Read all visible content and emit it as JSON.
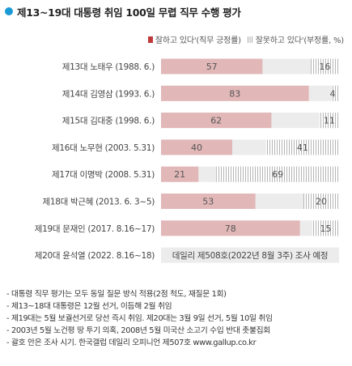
{
  "title": "제13~19대 대통령 취임 100일 무렵 직무 수행 평가",
  "legend": {
    "positive": "잘하고 있다'(직무 긍정률)",
    "negative": "잘못하고 있다'(부정률, %)"
  },
  "colors": {
    "positive_bar": "#e2b7b8",
    "negative_stripe": "#b5b5b5",
    "track": "#ececec",
    "title_dot": "#1a9ad6"
  },
  "chart_data": {
    "type": "bar",
    "orientation": "horizontal-stacked",
    "categories": [
      "제13대 노태우 (1988. 6.)",
      "제14대 김영삼 (1993. 6.)",
      "제15대 김대중 (1998. 6.)",
      "제16대 노무현 (2003. 5.31)",
      "제17대 이명박 (2008. 5.31)",
      "제18대 박근혜 (2013. 6. 3~5)",
      "제19대 문재인 (2017. 8.16~17)"
    ],
    "series": [
      {
        "name": "잘하고 있다'(직무 긍정률)",
        "values": [
          57,
          83,
          62,
          40,
          21,
          53,
          78
        ]
      },
      {
        "name": "잘못하고 있다'(부정률, %)",
        "values": [
          16,
          4,
          11,
          41,
          69,
          20,
          15
        ]
      }
    ],
    "xlim": [
      0,
      100
    ],
    "pending_row": {
      "label": "제20대 윤석열 (2022. 8.16~18)",
      "text": "데일리 제508호(2022년 8월 3주) 조사 예정"
    }
  },
  "notes": [
    "- 대통령 직무 평가는 모두 동일 질문 방식 적용(2점 척도, 재질문 1회)",
    "- 제13~18대 대통령은 12월 선거, 이듬해 2월 취임",
    "- 제19대는 5월 보궐선거로 당선 즉시 취임. 제20대는 3월 9일 선거, 5월 10일 취임",
    "- 2003년 5월 노건평 땅 투기 의혹, 2008년 5월 미국산 소고기 수입 반대 촛불집회",
    "- 괄호 안은 조사 시기. 한국갤럽 데일리 오피니언 제507호 www.gallup.co.kr"
  ]
}
